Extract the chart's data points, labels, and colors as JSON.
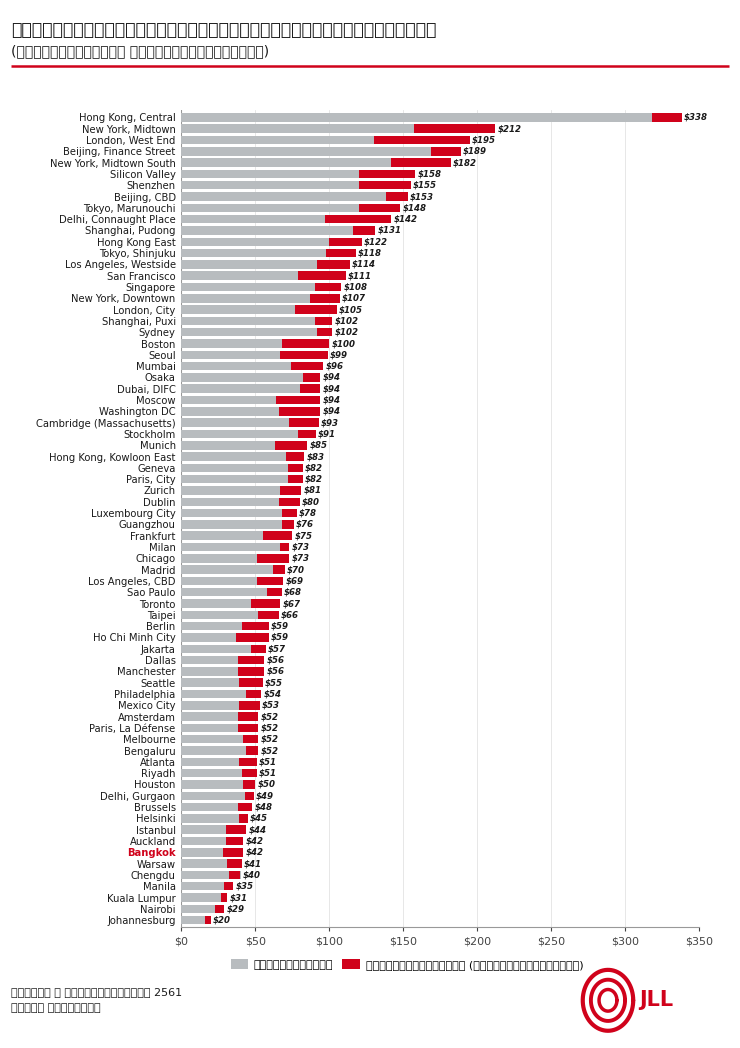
{
  "title_line1": "ต้นทุนการเช่าพื้นที่สำนักงานเกรดพรีเมี่ยม",
  "title_line2": "(ดอลลาร์สหรัฐฯ ต่อตารางฟุตต่อปี)",
  "cities": [
    "Hong Kong, Central",
    "New York, Midtown",
    "London, West End",
    "Beijing, Finance Street",
    "New York, Midtown South",
    "Silicon Valley",
    "Shenzhen",
    "Beijing, CBD",
    "Tokyo, Marunouchi",
    "Delhi, Connaught Place",
    "Shanghai, Pudong",
    "Hong Kong East",
    "Tokyo, Shinjuku",
    "Los Angeles, Westside",
    "San Francisco",
    "Singapore",
    "New York, Downtown",
    "London, City",
    "Shanghai, Puxi",
    "Sydney",
    "Boston",
    "Seoul",
    "Mumbai",
    "Osaka",
    "Dubai, DIFC",
    "Moscow",
    "Washington DC",
    "Cambridge (Massachusetts)",
    "Stockholm",
    "Munich",
    "Hong Kong, Kowloon East",
    "Geneva",
    "Paris, City",
    "Zurich",
    "Dublin",
    "Luxembourg City",
    "Guangzhou",
    "Frankfurt",
    "Milan",
    "Chicago",
    "Madrid",
    "Los Angeles, CBD",
    "Sao Paulo",
    "Toronto",
    "Taipei",
    "Berlin",
    "Ho Chi Minh City",
    "Jakarta",
    "Dallas",
    "Manchester",
    "Seattle",
    "Philadelphia",
    "Mexico City",
    "Amsterdam",
    "Paris, La Défense",
    "Melbourne",
    "Bengaluru",
    "Atlanta",
    "Riyadh",
    "Houston",
    "Delhi, Gurgaon",
    "Brussels",
    "Helsinki",
    "Istanbul",
    "Auckland",
    "Bangkok",
    "Warsaw",
    "Chengdu",
    "Manila",
    "Kuala Lumpur",
    "Nairobi",
    "Johannesburg"
  ],
  "total_values": [
    338,
    212,
    195,
    189,
    182,
    158,
    155,
    153,
    148,
    142,
    131,
    122,
    118,
    114,
    111,
    108,
    107,
    105,
    102,
    102,
    100,
    99,
    96,
    94,
    94,
    94,
    94,
    93,
    91,
    85,
    83,
    82,
    82,
    81,
    80,
    78,
    76,
    75,
    73,
    73,
    70,
    69,
    68,
    67,
    66,
    59,
    59,
    57,
    56,
    56,
    55,
    54,
    53,
    52,
    52,
    52,
    52,
    51,
    51,
    50,
    49,
    48,
    45,
    44,
    42,
    42,
    41,
    40,
    35,
    31,
    29,
    20
  ],
  "red_values": [
    20,
    55,
    65,
    20,
    40,
    38,
    35,
    15,
    28,
    45,
    15,
    22,
    20,
    22,
    32,
    18,
    20,
    28,
    12,
    10,
    32,
    32,
    22,
    12,
    14,
    30,
    28,
    20,
    12,
    22,
    12,
    10,
    10,
    14,
    14,
    10,
    8,
    20,
    6,
    22,
    8,
    18,
    10,
    20,
    14,
    18,
    22,
    10,
    18,
    18,
    16,
    10,
    14,
    14,
    14,
    10,
    8,
    12,
    10,
    8,
    6,
    10,
    6,
    14,
    12,
    14,
    10,
    8,
    6,
    4,
    6,
    4
  ],
  "bar_color_gray": "#b8bcbf",
  "bar_color_red": "#d0021b",
  "title_color": "#1a1a1a",
  "bangkok_color": "#d0021b",
  "legend_gray_label": "ค่าเช่าสุทธิ",
  "legend_red_label": "ค่าใช้จ่ายอื่นๆ (ภาษีและค่าบริการ)",
  "footnote1": "ข้อมูล ณ สิ้นไตรมาสสาม 2561",
  "footnote2": "ที่มา เจแอลแอล",
  "xlim": [
    0,
    350
  ],
  "xticks": [
    0,
    50,
    100,
    150,
    200,
    250,
    300,
    350
  ],
  "xtick_labels": [
    "$0",
    "$50",
    "$100",
    "$150",
    "$200",
    "$250",
    "$300",
    "$350"
  ]
}
